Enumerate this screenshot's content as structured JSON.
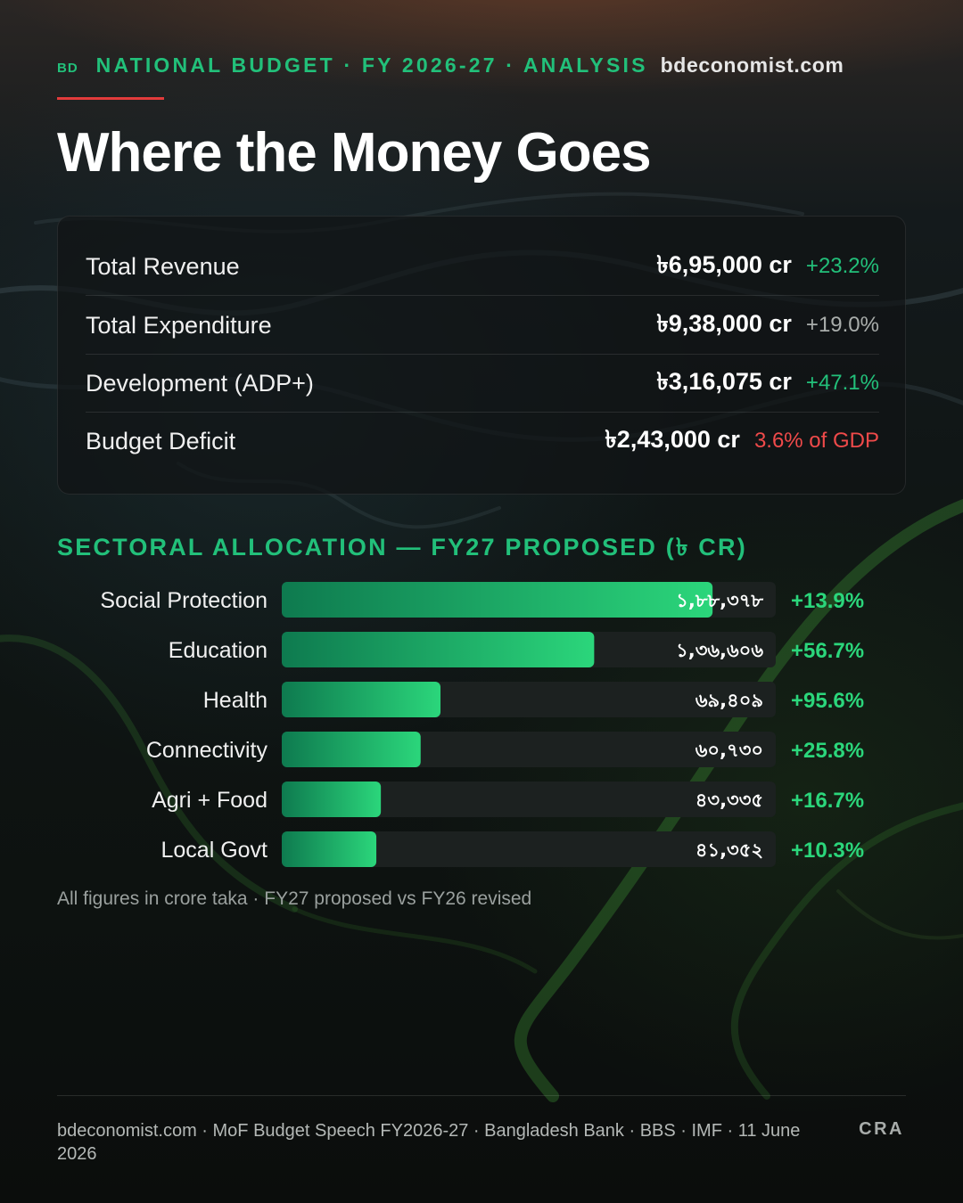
{
  "header": {
    "badge": "BD",
    "section": "NATIONAL BUDGET · FY 2026-27 · ANALYSIS",
    "site": "bdeconomist.com"
  },
  "title": "Where the Money Goes",
  "summary": [
    {
      "label": "Total Revenue",
      "value": "৳6,95,000 cr",
      "change": "+23.2%",
      "change_color": "#22c07a"
    },
    {
      "label": "Total Expenditure",
      "value": "৳9,38,000 cr",
      "change": "+19.0%",
      "change_color": "#a9adab"
    },
    {
      "label": "Development (ADP+)",
      "value": "৳3,16,075 cr",
      "change": "+47.1%",
      "change_color": "#22c07a"
    },
    {
      "label": "Budget Deficit",
      "value": "৳2,43,000 cr",
      "change": "3.6% of GDP",
      "change_color": "#ef4a4a"
    }
  ],
  "chart_data": {
    "type": "bar",
    "orientation": "horizontal",
    "title": "SECTORAL ALLOCATION — FY27 PROPOSED (৳ CR)",
    "categories": [
      "Social Protection",
      "Education",
      "Health",
      "Connectivity",
      "Agri + Food",
      "Local Govt"
    ],
    "values": [
      188378,
      136606,
      69409,
      60730,
      43335,
      41352
    ],
    "value_labels": [
      "১,৮৮,৩৭৮",
      "১,৩৬,৬০৬",
      "৬৯,৪০৯",
      "৬০,৭৩০",
      "৪৩,৩৩৫",
      "৪১,৩৫২"
    ],
    "changes": [
      "+13.9%",
      "+56.7%",
      "+95.6%",
      "+25.8%",
      "+16.7%",
      "+10.3%"
    ],
    "xlim": [
      0,
      216000
    ],
    "colors": {
      "bar_start": "#0e7a4f",
      "bar_end": "#2bd67b",
      "track": "#1c2120",
      "change": "#2bd67b"
    }
  },
  "note": "All figures in crore taka · FY27 proposed vs FY26 revised",
  "footer": {
    "sources": "bdeconomist.com · MoF Budget Speech FY2026-27 · Bangladesh Bank · BBS · IMF · 11 June 2026",
    "mark": "CRA"
  }
}
